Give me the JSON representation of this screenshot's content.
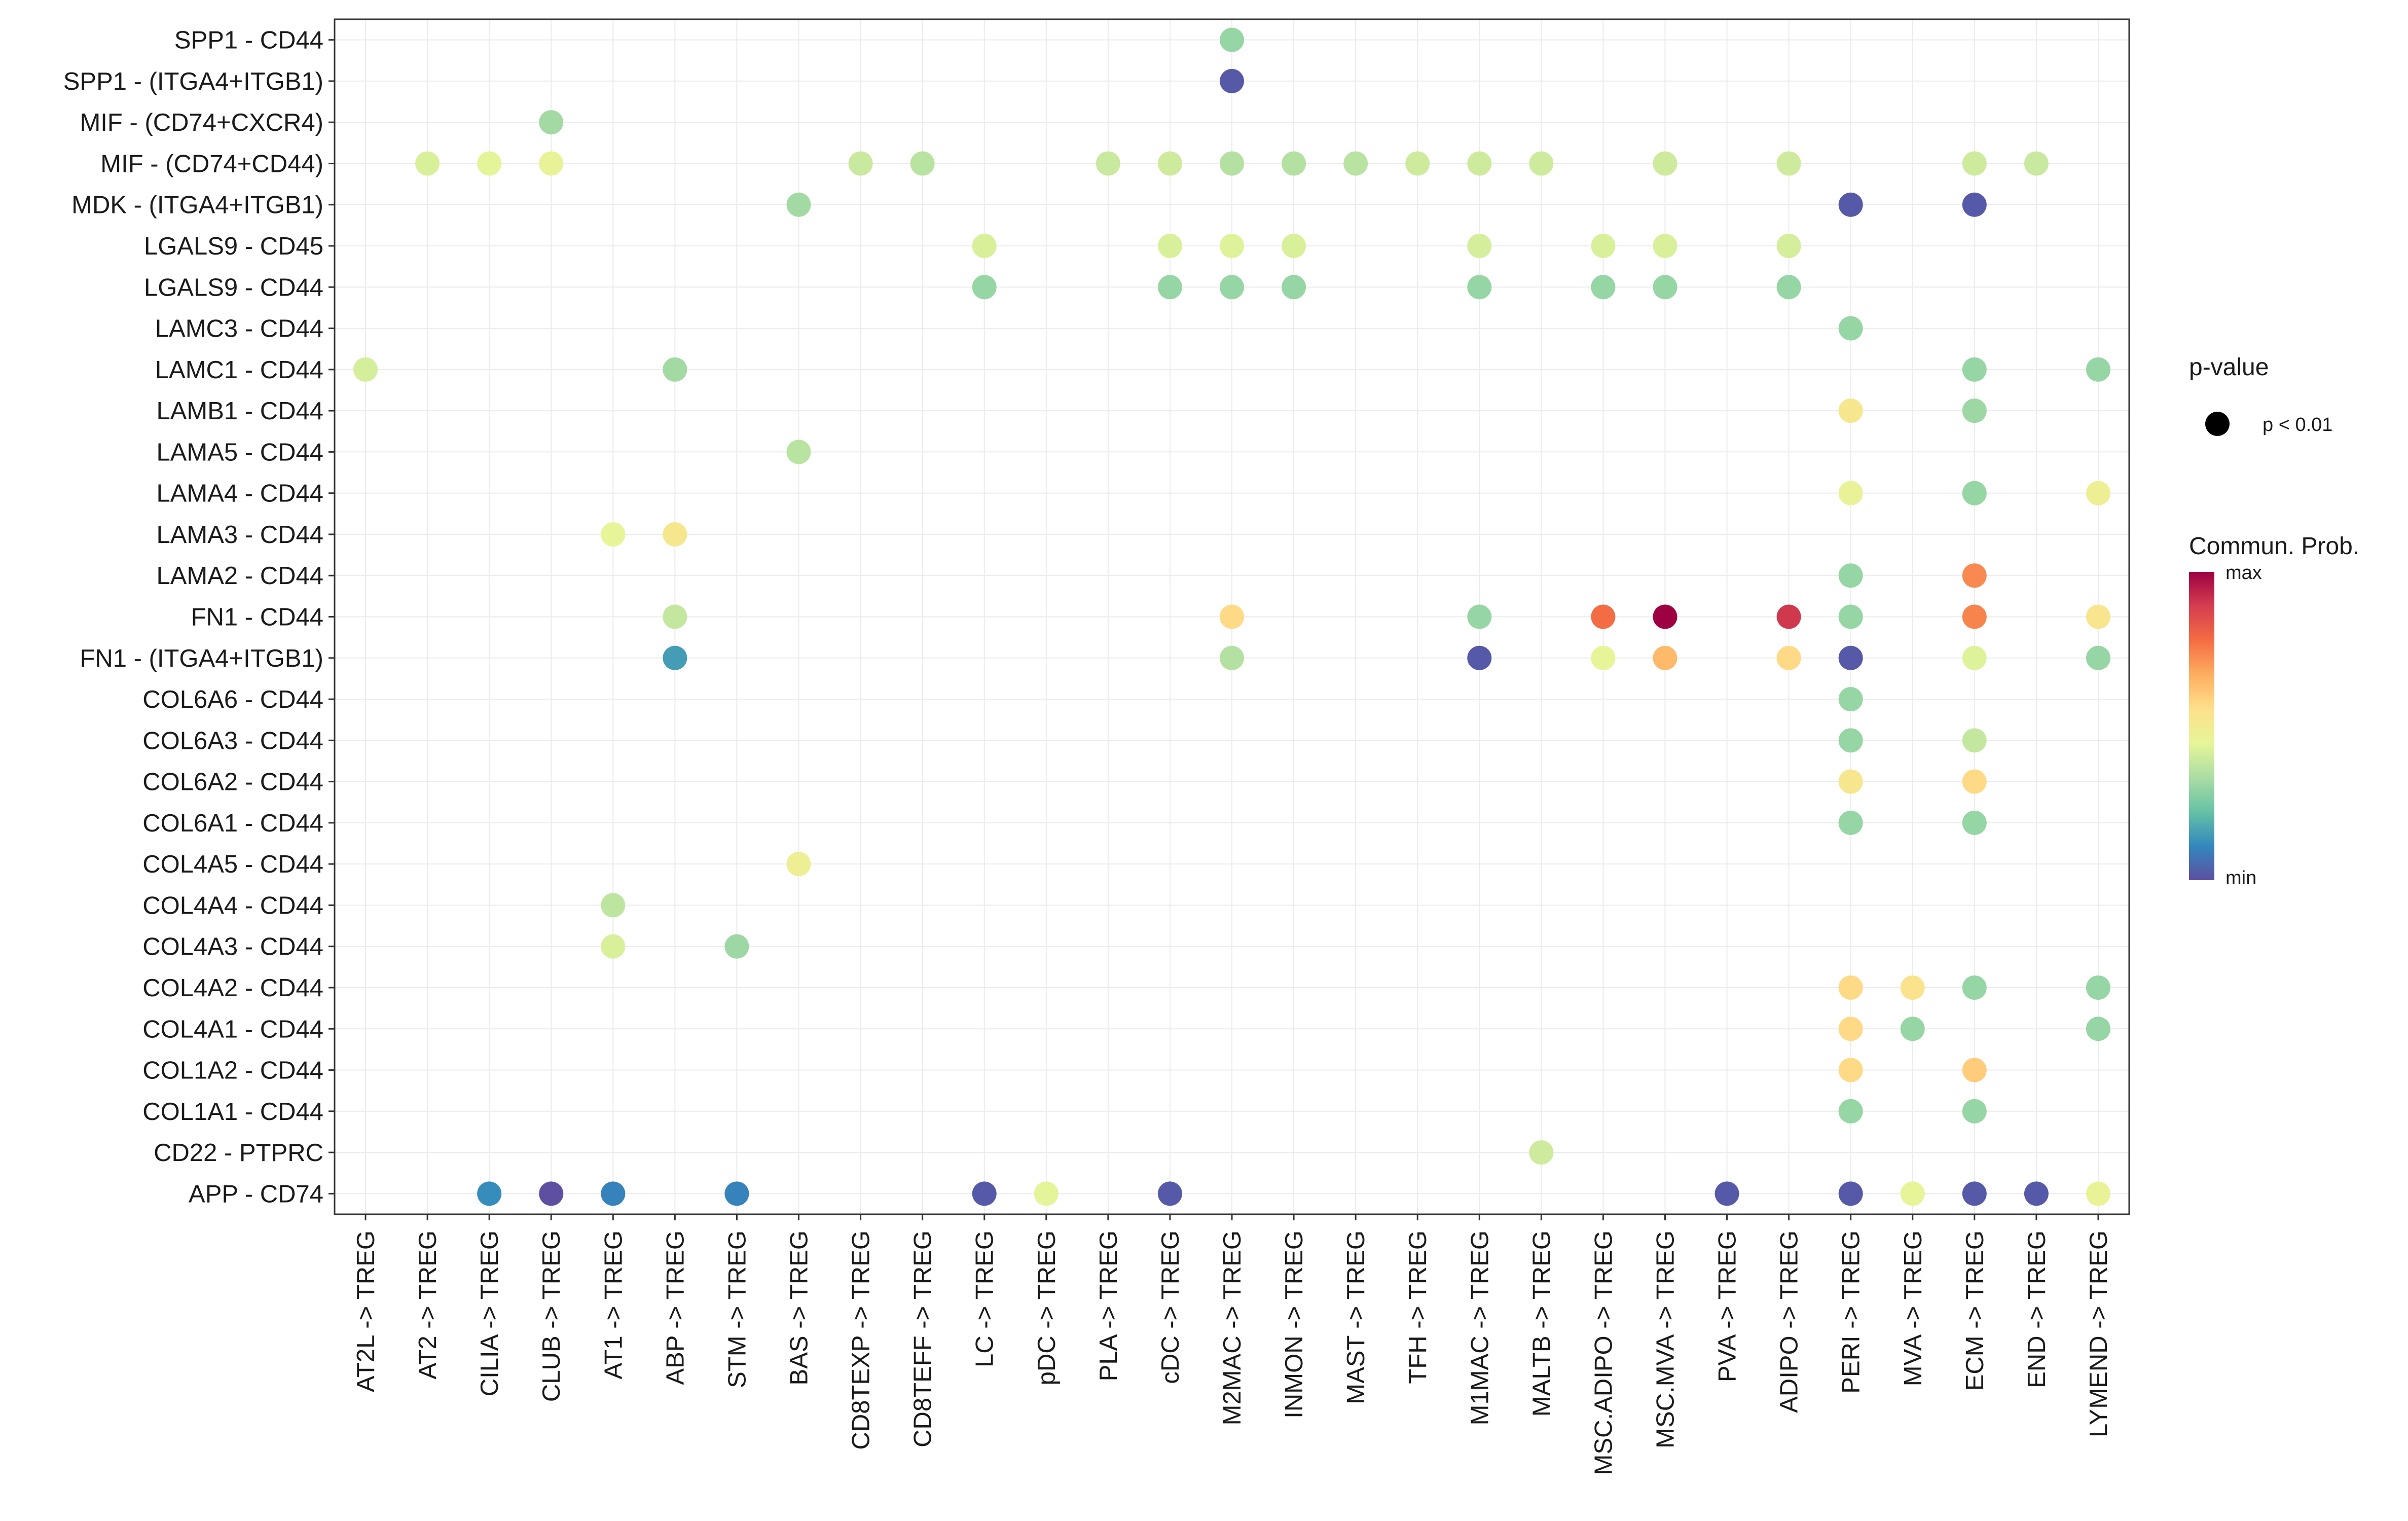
{
  "chart_data": {
    "type": "scatter",
    "title": "",
    "xlabel": "",
    "ylabel": "",
    "grid": true,
    "x": [
      "AT2L -> TREG",
      "AT2 -> TREG",
      "CILIA -> TREG",
      "CLUB -> TREG",
      "AT1 -> TREG",
      "ABP -> TREG",
      "STM -> TREG",
      "BAS -> TREG",
      "CD8TEXP -> TREG",
      "CD8TEFF -> TREG",
      "LC -> TREG",
      "pDC -> TREG",
      "PLA -> TREG",
      "cDC -> TREG",
      "M2MAC -> TREG",
      "INMON -> TREG",
      "MAST -> TREG",
      "TFH -> TREG",
      "M1MAC -> TREG",
      "MALTB -> TREG",
      "MSC.ADIPO -> TREG",
      "MSC.MVA -> TREG",
      "PVA -> TREG",
      "ADIPO -> TREG",
      "PERI -> TREG",
      "MVA -> TREG",
      "ECM -> TREG",
      "END -> TREG",
      "LYMEND -> TREG"
    ],
    "y": [
      "SPP1 - CD44",
      "SPP1 - (ITGA4+ITGB1)",
      "MIF - (CD74+CXCR4)",
      "MIF - (CD74+CD44)",
      "MDK - (ITGA4+ITGB1)",
      "LGALS9 - CD45",
      "LGALS9 - CD44",
      "LAMC3 - CD44",
      "LAMC1 - CD44",
      "LAMB1 - CD44",
      "LAMA5 - CD44",
      "LAMA4 - CD44",
      "LAMA3 - CD44",
      "LAMA2 - CD44",
      "FN1 - CD44",
      "FN1 - (ITGA4+ITGB1)",
      "COL6A6 - CD44",
      "COL6A3 - CD44",
      "COL6A2 - CD44",
      "COL6A1 - CD44",
      "COL4A5 - CD44",
      "COL4A4 - CD44",
      "COL4A3 - CD44",
      "COL4A2 - CD44",
      "COL4A1 - CD44",
      "COL1A2 - CD44",
      "COL1A1 - CD44",
      "CD22 - PTPRC",
      "APP - CD74"
    ],
    "points": [
      {
        "x": "M2MAC -> TREG",
        "y": "SPP1 - CD44",
        "prob": 0.3
      },
      {
        "x": "M2MAC -> TREG",
        "y": "SPP1 - (ITGA4+ITGB1)",
        "prob": 0.02
      },
      {
        "x": "CLUB -> TREG",
        "y": "MIF - (CD74+CXCR4)",
        "prob": 0.32
      },
      {
        "x": "AT2 -> TREG",
        "y": "MIF - (CD74+CD44)",
        "prob": 0.42
      },
      {
        "x": "CILIA -> TREG",
        "y": "MIF - (CD74+CD44)",
        "prob": 0.44
      },
      {
        "x": "CLUB -> TREG",
        "y": "MIF - (CD74+CD44)",
        "prob": 0.46
      },
      {
        "x": "CD8TEXP -> TREG",
        "y": "MIF - (CD74+CD44)",
        "prob": 0.39
      },
      {
        "x": "CD8TEFF -> TREG",
        "y": "MIF - (CD74+CD44)",
        "prob": 0.36
      },
      {
        "x": "PLA -> TREG",
        "y": "MIF - (CD74+CD44)",
        "prob": 0.39
      },
      {
        "x": "cDC -> TREG",
        "y": "MIF - (CD74+CD44)",
        "prob": 0.4
      },
      {
        "x": "M2MAC -> TREG",
        "y": "MIF - (CD74+CD44)",
        "prob": 0.35
      },
      {
        "x": "INMON -> TREG",
        "y": "MIF - (CD74+CD44)",
        "prob": 0.35
      },
      {
        "x": "MAST -> TREG",
        "y": "MIF - (CD74+CD44)",
        "prob": 0.36
      },
      {
        "x": "TFH -> TREG",
        "y": "MIF - (CD74+CD44)",
        "prob": 0.4
      },
      {
        "x": "M1MAC -> TREG",
        "y": "MIF - (CD74+CD44)",
        "prob": 0.4
      },
      {
        "x": "MALTB -> TREG",
        "y": "MIF - (CD74+CD44)",
        "prob": 0.4
      },
      {
        "x": "MSC.MVA -> TREG",
        "y": "MIF - (CD74+CD44)",
        "prob": 0.4
      },
      {
        "x": "ADIPO -> TREG",
        "y": "MIF - (CD74+CD44)",
        "prob": 0.4
      },
      {
        "x": "ECM -> TREG",
        "y": "MIF - (CD74+CD44)",
        "prob": 0.4
      },
      {
        "x": "END -> TREG",
        "y": "MIF - (CD74+CD44)",
        "prob": 0.39
      },
      {
        "x": "BAS -> TREG",
        "y": "MDK - (ITGA4+ITGB1)",
        "prob": 0.32
      },
      {
        "x": "PERI -> TREG",
        "y": "MDK - (ITGA4+ITGB1)",
        "prob": 0.02
      },
      {
        "x": "ECM -> TREG",
        "y": "MDK - (ITGA4+ITGB1)",
        "prob": 0.02
      },
      {
        "x": "LC -> TREG",
        "y": "LGALS9 - CD45",
        "prob": 0.42
      },
      {
        "x": "cDC -> TREG",
        "y": "LGALS9 - CD45",
        "prob": 0.42
      },
      {
        "x": "M2MAC -> TREG",
        "y": "LGALS9 - CD45",
        "prob": 0.43
      },
      {
        "x": "INMON -> TREG",
        "y": "LGALS9 - CD45",
        "prob": 0.42
      },
      {
        "x": "M1MAC -> TREG",
        "y": "LGALS9 - CD45",
        "prob": 0.41
      },
      {
        "x": "MSC.ADIPO -> TREG",
        "y": "LGALS9 - CD45",
        "prob": 0.42
      },
      {
        "x": "MSC.MVA -> TREG",
        "y": "LGALS9 - CD45",
        "prob": 0.42
      },
      {
        "x": "ADIPO -> TREG",
        "y": "LGALS9 - CD45",
        "prob": 0.41
      },
      {
        "x": "LC -> TREG",
        "y": "LGALS9 - CD44",
        "prob": 0.3
      },
      {
        "x": "cDC -> TREG",
        "y": "LGALS9 - CD44",
        "prob": 0.3
      },
      {
        "x": "M2MAC -> TREG",
        "y": "LGALS9 - CD44",
        "prob": 0.3
      },
      {
        "x": "INMON -> TREG",
        "y": "LGALS9 - CD44",
        "prob": 0.3
      },
      {
        "x": "M1MAC -> TREG",
        "y": "LGALS9 - CD44",
        "prob": 0.3
      },
      {
        "x": "MSC.ADIPO -> TREG",
        "y": "LGALS9 - CD44",
        "prob": 0.3
      },
      {
        "x": "MSC.MVA -> TREG",
        "y": "LGALS9 - CD44",
        "prob": 0.3
      },
      {
        "x": "ADIPO -> TREG",
        "y": "LGALS9 - CD44",
        "prob": 0.3
      },
      {
        "x": "PERI -> TREG",
        "y": "LAMC3 - CD44",
        "prob": 0.3
      },
      {
        "x": "AT2L -> TREG",
        "y": "LAMC1 - CD44",
        "prob": 0.41
      },
      {
        "x": "ABP -> TREG",
        "y": "LAMC1 - CD44",
        "prob": 0.32
      },
      {
        "x": "ECM -> TREG",
        "y": "LAMC1 - CD44",
        "prob": 0.3
      },
      {
        "x": "LYMEND -> TREG",
        "y": "LAMC1 - CD44",
        "prob": 0.3
      },
      {
        "x": "PERI -> TREG",
        "y": "LAMB1 - CD44",
        "prob": 0.52
      },
      {
        "x": "ECM -> TREG",
        "y": "LAMB1 - CD44",
        "prob": 0.31
      },
      {
        "x": "BAS -> TREG",
        "y": "LAMA5 - CD44",
        "prob": 0.36
      },
      {
        "x": "PERI -> TREG",
        "y": "LAMA4 - CD44",
        "prob": 0.46
      },
      {
        "x": "ECM -> TREG",
        "y": "LAMA4 - CD44",
        "prob": 0.3
      },
      {
        "x": "LYMEND -> TREG",
        "y": "LAMA4 - CD44",
        "prob": 0.48
      },
      {
        "x": "AT1 -> TREG",
        "y": "LAMA3 - CD44",
        "prob": 0.45
      },
      {
        "x": "ABP -> TREG",
        "y": "LAMA3 - CD44",
        "prob": 0.52
      },
      {
        "x": "PERI -> TREG",
        "y": "LAMA2 - CD44",
        "prob": 0.3
      },
      {
        "x": "ECM -> TREG",
        "y": "LAMA2 - CD44",
        "prob": 0.73
      },
      {
        "x": "ABP -> TREG",
        "y": "FN1 - CD44",
        "prob": 0.38
      },
      {
        "x": "M2MAC -> TREG",
        "y": "FN1 - CD44",
        "prob": 0.57
      },
      {
        "x": "M1MAC -> TREG",
        "y": "FN1 - CD44",
        "prob": 0.3
      },
      {
        "x": "MSC.ADIPO -> TREG",
        "y": "FN1 - CD44",
        "prob": 0.78
      },
      {
        "x": "MSC.MVA -> TREG",
        "y": "FN1 - CD44",
        "prob": 1.0
      },
      {
        "x": "ADIPO -> TREG",
        "y": "FN1 - CD44",
        "prob": 0.9
      },
      {
        "x": "PERI -> TREG",
        "y": "FN1 - CD44",
        "prob": 0.3
      },
      {
        "x": "ECM -> TREG",
        "y": "FN1 - CD44",
        "prob": 0.74
      },
      {
        "x": "LYMEND -> TREG",
        "y": "FN1 - CD44",
        "prob": 0.53
      },
      {
        "x": "ABP -> TREG",
        "y": "FN1 - (ITGA4+ITGB1)",
        "prob": 0.15
      },
      {
        "x": "M2MAC -> TREG",
        "y": "FN1 - (ITGA4+ITGB1)",
        "prob": 0.35
      },
      {
        "x": "M1MAC -> TREG",
        "y": "FN1 - (ITGA4+ITGB1)",
        "prob": 0.02
      },
      {
        "x": "MSC.ADIPO -> TREG",
        "y": "FN1 - (ITGA4+ITGB1)",
        "prob": 0.45
      },
      {
        "x": "MSC.MVA -> TREG",
        "y": "FN1 - (ITGA4+ITGB1)",
        "prob": 0.64
      },
      {
        "x": "ADIPO -> TREG",
        "y": "FN1 - (ITGA4+ITGB1)",
        "prob": 0.57
      },
      {
        "x": "PERI -> TREG",
        "y": "FN1 - (ITGA4+ITGB1)",
        "prob": 0.02
      },
      {
        "x": "ECM -> TREG",
        "y": "FN1 - (ITGA4+ITGB1)",
        "prob": 0.43
      },
      {
        "x": "LYMEND -> TREG",
        "y": "FN1 - (ITGA4+ITGB1)",
        "prob": 0.3
      },
      {
        "x": "PERI -> TREG",
        "y": "COL6A6 - CD44",
        "prob": 0.3
      },
      {
        "x": "PERI -> TREG",
        "y": "COL6A3 - CD44",
        "prob": 0.3
      },
      {
        "x": "ECM -> TREG",
        "y": "COL6A3 - CD44",
        "prob": 0.38
      },
      {
        "x": "PERI -> TREG",
        "y": "COL6A2 - CD44",
        "prob": 0.52
      },
      {
        "x": "ECM -> TREG",
        "y": "COL6A2 - CD44",
        "prob": 0.57
      },
      {
        "x": "PERI -> TREG",
        "y": "COL6A1 - CD44",
        "prob": 0.3
      },
      {
        "x": "ECM -> TREG",
        "y": "COL6A1 - CD44",
        "prob": 0.3
      },
      {
        "x": "BAS -> TREG",
        "y": "COL4A5 - CD44",
        "prob": 0.48
      },
      {
        "x": "AT1 -> TREG",
        "y": "COL4A4 - CD44",
        "prob": 0.37
      },
      {
        "x": "AT1 -> TREG",
        "y": "COL4A3 - CD44",
        "prob": 0.42
      },
      {
        "x": "STM -> TREG",
        "y": "COL4A3 - CD44",
        "prob": 0.31
      },
      {
        "x": "PERI -> TREG",
        "y": "COL4A2 - CD44",
        "prob": 0.57
      },
      {
        "x": "MVA -> TREG",
        "y": "COL4A2 - CD44",
        "prob": 0.54
      },
      {
        "x": "ECM -> TREG",
        "y": "COL4A2 - CD44",
        "prob": 0.3
      },
      {
        "x": "LYMEND -> TREG",
        "y": "COL4A2 - CD44",
        "prob": 0.3
      },
      {
        "x": "PERI -> TREG",
        "y": "COL4A1 - CD44",
        "prob": 0.57
      },
      {
        "x": "MVA -> TREG",
        "y": "COL4A1 - CD44",
        "prob": 0.3
      },
      {
        "x": "LYMEND -> TREG",
        "y": "COL4A1 - CD44",
        "prob": 0.3
      },
      {
        "x": "PERI -> TREG",
        "y": "COL1A2 - CD44",
        "prob": 0.57
      },
      {
        "x": "ECM -> TREG",
        "y": "COL1A2 - CD44",
        "prob": 0.6
      },
      {
        "x": "PERI -> TREG",
        "y": "COL1A1 - CD44",
        "prob": 0.3
      },
      {
        "x": "ECM -> TREG",
        "y": "COL1A1 - CD44",
        "prob": 0.3
      },
      {
        "x": "MALTB -> TREG",
        "y": "CD22 - PTPRC",
        "prob": 0.4
      },
      {
        "x": "CILIA -> TREG",
        "y": "APP - CD74",
        "prob": 0.12
      },
      {
        "x": "CLUB -> TREG",
        "y": "APP - CD74",
        "prob": 0.0
      },
      {
        "x": "AT1 -> TREG",
        "y": "APP - CD74",
        "prob": 0.1
      },
      {
        "x": "STM -> TREG",
        "y": "APP - CD74",
        "prob": 0.1
      },
      {
        "x": "LC -> TREG",
        "y": "APP - CD74",
        "prob": 0.02
      },
      {
        "x": "pDC -> TREG",
        "y": "APP - CD74",
        "prob": 0.44
      },
      {
        "x": "cDC -> TREG",
        "y": "APP - CD74",
        "prob": 0.02
      },
      {
        "x": "PVA -> TREG",
        "y": "APP - CD74",
        "prob": 0.02
      },
      {
        "x": "PERI -> TREG",
        "y": "APP - CD74",
        "prob": 0.02
      },
      {
        "x": "MVA -> TREG",
        "y": "APP - CD74",
        "prob": 0.45
      },
      {
        "x": "ECM -> TREG",
        "y": "APP - CD74",
        "prob": 0.02
      },
      {
        "x": "END -> TREG",
        "y": "APP - CD74",
        "prob": 0.02
      },
      {
        "x": "LYMEND -> TREG",
        "y": "APP - CD74",
        "prob": 0.46
      }
    ],
    "legend_size": {
      "title": "p-value",
      "label": "p < 0.01"
    },
    "legend_color": {
      "title": "Commun. Prob.",
      "max_label": "max",
      "min_label": "min",
      "colors": [
        "#5E4FA2",
        "#3288BD",
        "#66C2A5",
        "#ABDDA4",
        "#E6F598",
        "#FEE08B",
        "#FDAE61",
        "#F46D43",
        "#D53E4F",
        "#9E0142"
      ]
    },
    "legend_position": "right"
  }
}
